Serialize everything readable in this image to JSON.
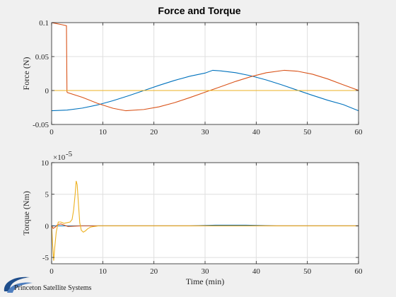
{
  "figure_title": "Force and Torque",
  "logo_text": "Princeton Satellite Systems",
  "colors": {
    "blue": "#0072BD",
    "orange": "#D95319",
    "yellow": "#EDB120",
    "axes_bg": "#ffffff",
    "fig_bg": "#f0f0f0"
  },
  "chart_data": [
    {
      "type": "line",
      "title": "Force and Torque",
      "xlabel": "",
      "ylabel": "Force (N)",
      "xlim": [
        0,
        60
      ],
      "ylim": [
        -0.05,
        0.1
      ],
      "xticks": [
        0,
        10,
        20,
        30,
        40,
        50,
        60
      ],
      "yticks": [
        -0.05,
        0,
        0.05,
        0.1
      ],
      "ytick_labels": [
        "-0.05",
        "0",
        "0.05",
        "0.1"
      ],
      "grid": true,
      "series": [
        {
          "color": "#0072BD",
          "x": [
            0,
            3,
            6,
            9,
            12,
            15,
            18,
            21,
            24,
            27,
            30,
            31.5,
            33,
            36,
            39,
            42,
            45,
            48,
            51,
            54,
            57,
            60
          ],
          "y": [
            -0.0298,
            -0.0288,
            -0.0259,
            -0.0212,
            -0.015,
            -0.0078,
            -0.0001,
            0.0076,
            0.0148,
            0.021,
            0.0257,
            0.0298,
            0.029,
            0.0262,
            0.0216,
            0.0155,
            0.0083,
            0.0006,
            -0.0071,
            -0.0144,
            -0.0207,
            -0.0298
          ]
        },
        {
          "color": "#D95319",
          "x": [
            0,
            1,
            2,
            2.9,
            3.0,
            3.1,
            6,
            9,
            12,
            14.5,
            18,
            21,
            24,
            27,
            30,
            33,
            36,
            39,
            42,
            45.5,
            48,
            51,
            54,
            57,
            60
          ],
          "y": [
            0.1,
            0.0985,
            0.097,
            0.0955,
            -0.002,
            -0.003,
            -0.01,
            -0.019,
            -0.0262,
            -0.0298,
            -0.028,
            -0.024,
            -0.018,
            -0.0105,
            -0.0025,
            0.0055,
            0.0135,
            0.0205,
            0.0262,
            0.0298,
            0.0285,
            0.024,
            0.017,
            0.0085,
            0.0002
          ]
        },
        {
          "color": "#EDB120",
          "x": [
            0,
            60
          ],
          "y": [
            0,
            0
          ]
        }
      ]
    },
    {
      "type": "line",
      "xlabel": "Time (min)",
      "ylabel": "Torque (Nm)",
      "exponent_label": "×10",
      "exponent_power": "-5",
      "xlim": [
        0,
        60
      ],
      "ylim": [
        -6,
        10
      ],
      "xticks": [
        0,
        10,
        20,
        30,
        40,
        50,
        60
      ],
      "yticks": [
        -5,
        0,
        5,
        10
      ],
      "ytick_labels": [
        "-5",
        "0",
        "5",
        "10"
      ],
      "grid": true,
      "series": [
        {
          "color": "#0072BD",
          "x": [
            0,
            27,
            32,
            38,
            44,
            60
          ],
          "y": [
            0,
            0,
            0.1,
            0.1,
            0,
            0
          ]
        },
        {
          "color": "#D95319",
          "x": [
            0,
            0.3,
            0.7,
            1.2,
            1.8,
            2.5,
            3.2,
            4.5,
            6.0,
            8.0,
            10.0,
            11.0,
            60
          ],
          "y": [
            0,
            -0.4,
            -0.2,
            0.2,
            0.3,
            0.1,
            -0.1,
            -0.05,
            0,
            0,
            0,
            0,
            0
          ]
        },
        {
          "color": "#EDB120",
          "x": [
            0,
            0.2,
            0.4,
            0.6,
            0.9,
            1.3,
            1.8,
            2.4,
            3.0,
            3.6,
            4.0,
            4.3,
            4.6,
            4.8,
            5.0,
            5.2,
            5.5,
            5.8,
            6.2,
            6.6,
            7.0,
            7.6,
            8.3,
            9.2,
            10.0,
            10.8,
            60
          ],
          "y": [
            0,
            -3.0,
            -5.5,
            -3.5,
            -1.0,
            0.6,
            0.6,
            0.4,
            0.5,
            0.6,
            1.0,
            2.5,
            5.0,
            7.1,
            6.5,
            4.0,
            0.5,
            -0.7,
            -1.0,
            -0.8,
            -0.5,
            -0.2,
            -0.1,
            0,
            0,
            0,
            0
          ]
        }
      ]
    }
  ]
}
